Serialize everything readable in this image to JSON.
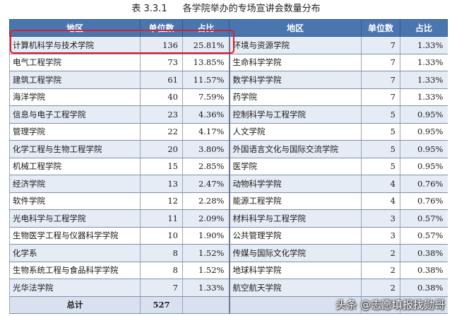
{
  "caption": {
    "number": "表 3.3.1",
    "title": "各学院举办的专场宣讲会数量分布"
  },
  "headers": {
    "region": "地区",
    "count": "单位数",
    "pct": "占比",
    "region2": "地区",
    "count2": "单位数",
    "pct2": "占比"
  },
  "rows": [
    {
      "left": {
        "name": "计算机科学与技术学院",
        "count": "136",
        "pct": "25.81%"
      },
      "right": {
        "name": "环境与资源学院",
        "count": "7",
        "pct": "1.33%"
      }
    },
    {
      "left": {
        "name": "电气工程学院",
        "count": "73",
        "pct": "13.85%"
      },
      "right": {
        "name": "生命科学学院",
        "count": "7",
        "pct": "1.33%"
      }
    },
    {
      "left": {
        "name": "建筑工程学院",
        "count": "61",
        "pct": "11.57%"
      },
      "right": {
        "name": "数学科学学院",
        "count": "7",
        "pct": "1.33%"
      }
    },
    {
      "left": {
        "name": "海洋学院",
        "count": "40",
        "pct": "7.59%"
      },
      "right": {
        "name": "药学院",
        "count": "7",
        "pct": "1.33%"
      }
    },
    {
      "left": {
        "name": "信息与电子工程学院",
        "count": "23",
        "pct": "4.36%"
      },
      "right": {
        "name": "控制科学与工程学院",
        "count": "5",
        "pct": "0.95%"
      }
    },
    {
      "left": {
        "name": "管理学院",
        "count": "22",
        "pct": "4.17%"
      },
      "right": {
        "name": "人文学院",
        "count": "5",
        "pct": "0.95%"
      }
    },
    {
      "left": {
        "name": "化学工程与生物工程学院",
        "count": "20",
        "pct": "3.80%"
      },
      "right": {
        "name": "外国语言文化与国际交流学院",
        "count": "5",
        "pct": "0.95%"
      }
    },
    {
      "left": {
        "name": "机械工程学院",
        "count": "15",
        "pct": "2.85%"
      },
      "right": {
        "name": "医学院",
        "count": "5",
        "pct": "0.95%"
      }
    },
    {
      "left": {
        "name": "经济学院",
        "count": "13",
        "pct": "2.47%"
      },
      "right": {
        "name": "动物科学学院",
        "count": "4",
        "pct": "0.76%"
      }
    },
    {
      "left": {
        "name": "软件学院",
        "count": "12",
        "pct": "2.28%"
      },
      "right": {
        "name": "能源工程学院",
        "count": "4",
        "pct": "0.76%"
      }
    },
    {
      "left": {
        "name": "光电科学与工程学院",
        "count": "11",
        "pct": "2.09%"
      },
      "right": {
        "name": "材料科学与工程学院",
        "count": "3",
        "pct": "0.57%"
      }
    },
    {
      "left": {
        "name": "生物医学工程与仪器科学学院",
        "count": "10",
        "pct": "1.90%"
      },
      "right": {
        "name": "公共管理学院",
        "count": "3",
        "pct": "0.57%"
      }
    },
    {
      "left": {
        "name": "化学系",
        "count": "8",
        "pct": "1.52%"
      },
      "right": {
        "name": "传媒与国际文化学院",
        "count": "2",
        "pct": "0.38%"
      }
    },
    {
      "left": {
        "name": "生物系统工程与食品科学学院",
        "count": "8",
        "pct": "1.52%"
      },
      "right": {
        "name": "地球科学学院",
        "count": "2",
        "pct": "0.38%"
      }
    },
    {
      "left": {
        "name": "光华法学院",
        "count": "7",
        "pct": "1.33%"
      },
      "right": {
        "name": "航空航天学院",
        "count": "2",
        "pct": "0.38%"
      }
    }
  ],
  "total": {
    "label": "总计",
    "count": "527"
  },
  "watermark": "头条 @志愿填报找勋哥",
  "colors": {
    "header_bg": "#4a76b0",
    "row_alt_bg": "#e6ecf5",
    "highlight_border": "#e21c2a"
  }
}
